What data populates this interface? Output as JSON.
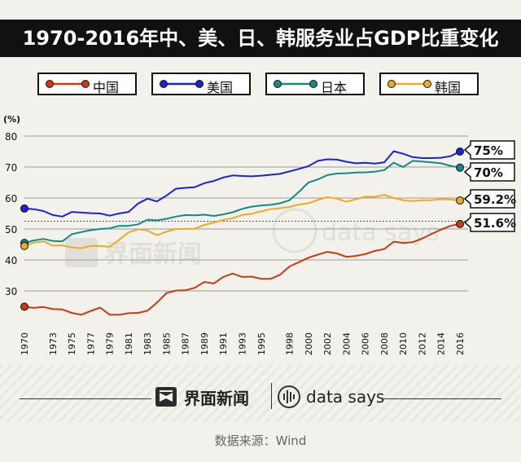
{
  "title": "1970-2016年中、美、日、韩服务业占GDP比重变化",
  "legend": [
    {
      "label": "中国",
      "color": "#cc3a12"
    },
    {
      "label": "美国",
      "color": "#1a22d6"
    },
    {
      "label": "日本",
      "color": "#138a87"
    },
    {
      "label": "韩国",
      "color": "#f2a922"
    }
  ],
  "chart_data": {
    "type": "line",
    "title": "1970-2016年中、美、日、韩服务业占GDP比重变化",
    "ylabel": "(%)",
    "xlabel": "",
    "ylim": [
      20,
      80
    ],
    "xlim": [
      1970,
      2016
    ],
    "yticks": [
      30,
      40,
      50,
      60,
      70,
      80
    ],
    "xticks": [
      "1970",
      "1973",
      "1975",
      "1977",
      "1979",
      "1981",
      "1983",
      "1985",
      "1987",
      "1989",
      "1991",
      "1993",
      "1995",
      "1998",
      "2000",
      "2002",
      "2004",
      "2006",
      "2008",
      "2010",
      "2012",
      "2014",
      "2016"
    ],
    "grid": "horizontal",
    "reference_line": 52.5,
    "series": [
      {
        "name": "中国",
        "color": "#cc3a12",
        "x": [
          1970,
          1971,
          1972,
          1973,
          1974,
          1975,
          1976,
          1977,
          1978,
          1979,
          1980,
          1981,
          1982,
          1983,
          1984,
          1985,
          1986,
          1987,
          1988,
          1989,
          1990,
          1991,
          1992,
          1993,
          1994,
          1995,
          1996,
          1997,
          1998,
          1999,
          2000,
          2001,
          2002,
          2003,
          2004,
          2005,
          2006,
          2007,
          2008,
          2009,
          2010,
          2011,
          2012,
          2013,
          2014,
          2015,
          2016
        ],
        "values": [
          24.9,
          24.5,
          24.8,
          24.1,
          24.0,
          22.9,
          22.3,
          23.5,
          24.6,
          22.3,
          22.3,
          22.8,
          22.9,
          23.6,
          26.2,
          29.3,
          30.1,
          30.2,
          31.0,
          32.9,
          32.4,
          34.5,
          35.6,
          34.5,
          34.6,
          33.9,
          33.9,
          35.2,
          37.9,
          39.3,
          40.7,
          41.7,
          42.6,
          42.1,
          41.0,
          41.3,
          41.9,
          42.9,
          43.5,
          45.9,
          45.5,
          45.7,
          46.9,
          48.4,
          49.8,
          51.0,
          51.6
        ],
        "end_label": "51.6%"
      },
      {
        "name": "美国",
        "color": "#1a22d6",
        "x": [
          1970,
          1971,
          1972,
          1973,
          1974,
          1975,
          1976,
          1977,
          1978,
          1979,
          1980,
          1981,
          1982,
          1983,
          1984,
          1985,
          1986,
          1987,
          1988,
          1989,
          1990,
          1991,
          1992,
          1993,
          1994,
          1995,
          1996,
          1997,
          1998,
          1999,
          2000,
          2001,
          2002,
          2003,
          2004,
          2005,
          2006,
          2007,
          2008,
          2009,
          2010,
          2011,
          2012,
          2013,
          2014,
          2015,
          2016
        ],
        "values": [
          56.6,
          56.4,
          55.8,
          54.5,
          54.0,
          55.5,
          55.3,
          55.1,
          55.0,
          54.3,
          55.0,
          55.5,
          58.2,
          59.8,
          58.9,
          60.8,
          63.0,
          63.3,
          63.5,
          64.8,
          65.5,
          66.6,
          67.3,
          67.1,
          67.0,
          67.2,
          67.5,
          67.8,
          68.6,
          69.4,
          70.3,
          72.0,
          72.5,
          72.4,
          71.7,
          71.2,
          71.4,
          71.1,
          71.5,
          75.1,
          74.3,
          73.2,
          72.9,
          72.9,
          73.0,
          73.5,
          75.0
        ],
        "end_label": "75%"
      },
      {
        "name": "日本",
        "color": "#138a87",
        "x": [
          1970,
          1971,
          1972,
          1973,
          1974,
          1975,
          1976,
          1977,
          1978,
          1979,
          1980,
          1981,
          1982,
          1983,
          1984,
          1985,
          1986,
          1987,
          1988,
          1989,
          1990,
          1991,
          1992,
          1993,
          1994,
          1995,
          1996,
          1997,
          1998,
          1999,
          2000,
          2001,
          2002,
          2003,
          2004,
          2005,
          2006,
          2007,
          2008,
          2009,
          2010,
          2011,
          2012,
          2013,
          2014,
          2015,
          2016
        ],
        "values": [
          45.5,
          46.3,
          46.8,
          46.1,
          46.0,
          48.3,
          49.0,
          49.6,
          50.0,
          50.2,
          51.0,
          51.0,
          51.5,
          53.0,
          52.8,
          53.3,
          54.0,
          54.5,
          54.4,
          54.6,
          54.2,
          54.7,
          55.4,
          56.5,
          57.2,
          57.6,
          57.8,
          58.3,
          59.3,
          62.0,
          65.0,
          66.0,
          67.4,
          67.9,
          68.0,
          68.2,
          68.3,
          68.5,
          69.0,
          71.4,
          70.0,
          72.0,
          71.8,
          71.5,
          71.2,
          70.4,
          69.8
        ],
        "end_label": "70%"
      },
      {
        "name": "韩国",
        "color": "#f2a922",
        "x": [
          1970,
          1971,
          1972,
          1973,
          1974,
          1975,
          1976,
          1977,
          1978,
          1979,
          1980,
          1981,
          1982,
          1983,
          1984,
          1985,
          1986,
          1987,
          1988,
          1989,
          1990,
          1991,
          1992,
          1993,
          1994,
          1995,
          1996,
          1997,
          1998,
          1999,
          2000,
          2001,
          2002,
          2003,
          2004,
          2005,
          2006,
          2007,
          2008,
          2009,
          2010,
          2011,
          2012,
          2013,
          2014,
          2015,
          2016
        ],
        "values": [
          44.5,
          45.6,
          46.0,
          44.6,
          44.7,
          44.0,
          43.8,
          44.5,
          44.5,
          44.2,
          46.5,
          48.9,
          49.9,
          49.5,
          48.0,
          49.1,
          50.0,
          50.0,
          50.1,
          51.3,
          52.1,
          52.9,
          53.5,
          54.5,
          54.9,
          55.7,
          56.4,
          56.7,
          57.1,
          57.9,
          58.3,
          59.4,
          60.3,
          59.8,
          58.8,
          59.6,
          60.4,
          60.4,
          61.0,
          60.0,
          59.3,
          59.0,
          59.3,
          59.3,
          59.6,
          59.5,
          59.2
        ],
        "end_label": "59.2%"
      }
    ]
  },
  "watermark": {
    "brand_cn": "界面新闻",
    "brand_en": "data says"
  },
  "footer": {
    "brand_cn": "界面新闻",
    "brand_en": "data says",
    "source": "数据来源：Wind"
  }
}
